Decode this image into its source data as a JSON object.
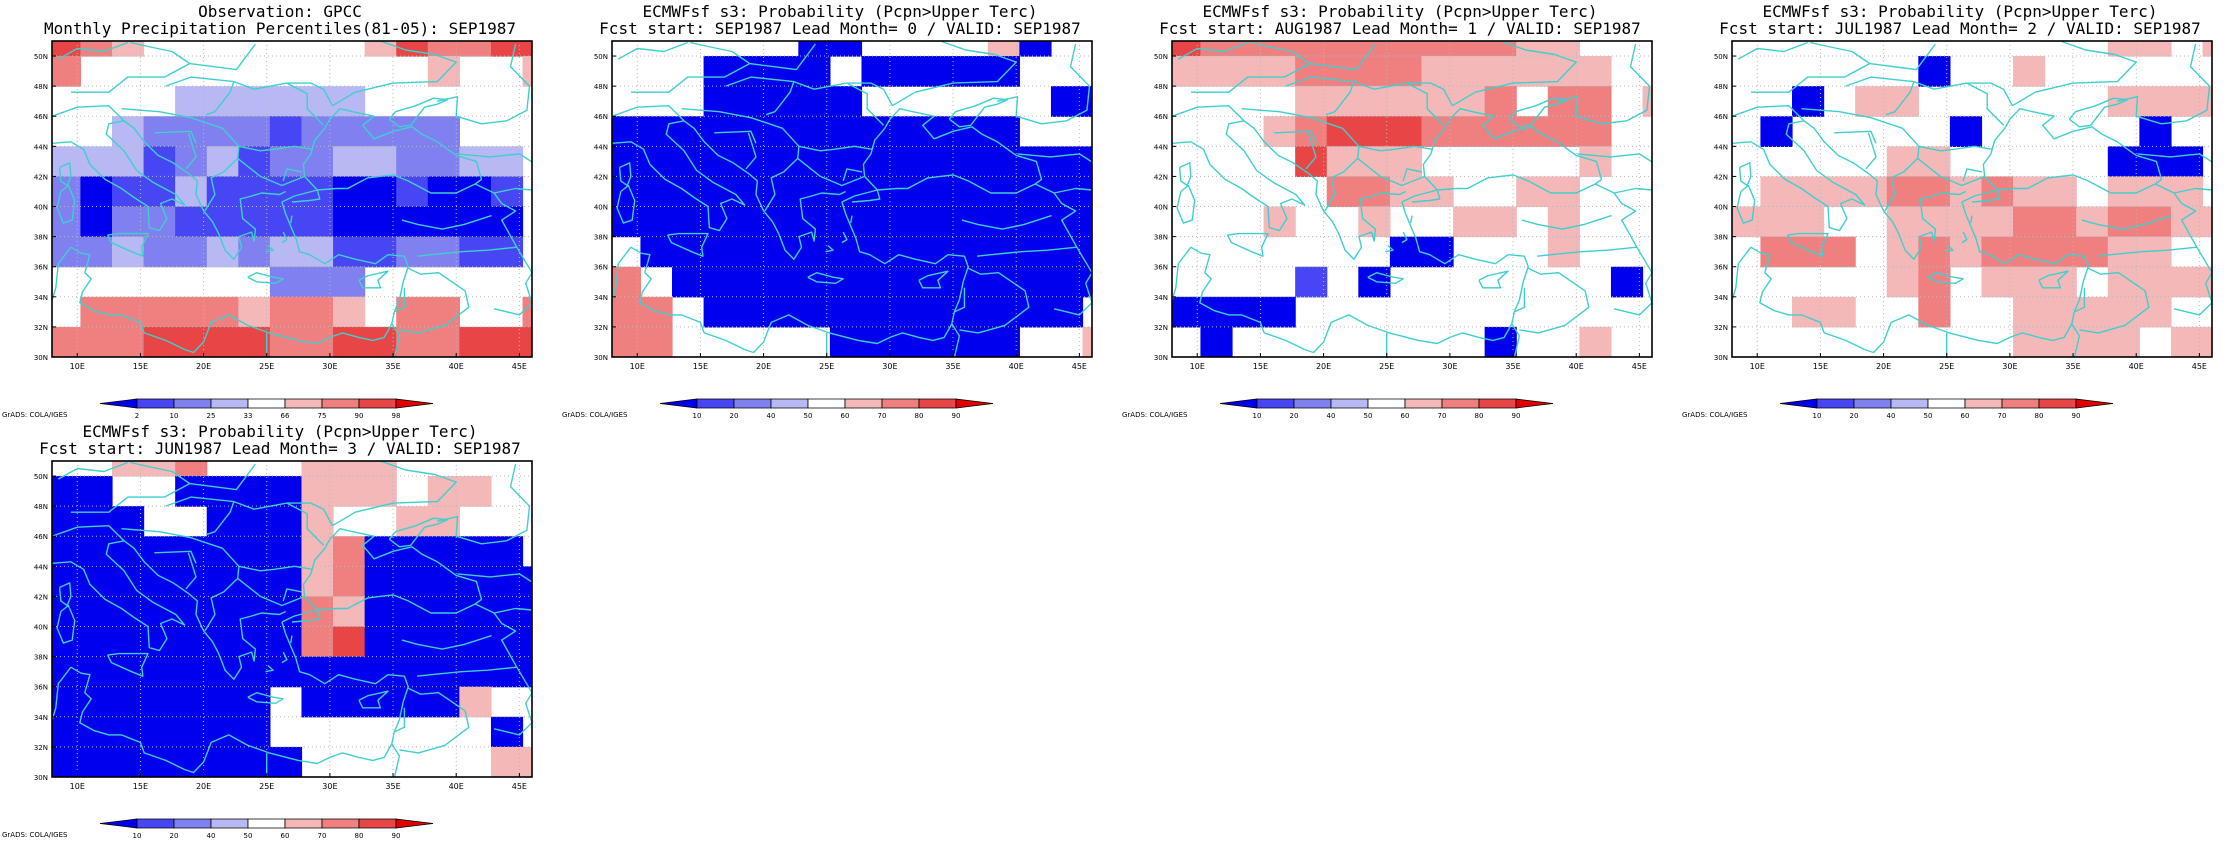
{
  "colors": {
    "land": "#ffffff",
    "coast": "#3fcfcf",
    "grid": "#b8b8b8",
    "scale": [
      "#0000ee",
      "#4646f4",
      "#8080f0",
      "#b8b8f4",
      "#ffffff",
      "#f4b8b8",
      "#f08080",
      "#e84646",
      "#e00000"
    ]
  },
  "axes": {
    "lon_ticks": [
      "10E",
      "15E",
      "20E",
      "25E",
      "30E",
      "35E",
      "40E",
      "45E"
    ],
    "lat_ticks": [
      "30N",
      "32N",
      "34N",
      "36N",
      "38N",
      "40N",
      "42N",
      "44N",
      "46N",
      "48N",
      "50N"
    ]
  },
  "grads_label": "GrADS: COLA/IGES",
  "panels": [
    {
      "title_line1": "Observation: GPCC",
      "title_line2": "Monthly Precipitation Percentiles(81-05): SEP1987",
      "legend_ticks": [
        "2",
        "10",
        "25",
        "33",
        "66",
        "75",
        "90",
        "98"
      ],
      "grid": [
        "76544444445766778",
        "64444444444454458",
        "44443333334444444",
        "44322221222224444",
        "33312312233223344",
        "20113111100100144",
        "20221111100000044",
        "22322323311221144",
        "44444442224444444",
        "46666656654664465",
        "66677776677667778",
        "66677666677666778"
      ]
    },
    {
      "title_line1": "ECMWFsf s3: Probability (Pcpn>Upper Terc)",
      "title_line2": "Fcst start: SEP1987  Lead Month= 0 / VALID: SEP1987",
      "legend_ticks": [
        "10",
        "20",
        "40",
        "50",
        "60",
        "70",
        "80",
        "90"
      ],
      "grid": [
        "44444400444450444",
        "44400004000004444",
        "44400000444444000",
        "00000000000004444",
        "00000000000000000",
        "00000000000000000",
        "00000000000000000",
        "40000000000000000",
        "64000000000000004",
        "66400000000000044",
        "66444440000004456",
        "44444000000004578"
      ]
    },
    {
      "title_line1": "ECMWFsf s3: Probability (Pcpn>Upper Terc)",
      "title_line2": "Fcst start: AUG1987  Lead Month= 1 / VALID: SEP1987",
      "legend_ticks": [
        "10",
        "20",
        "40",
        "50",
        "60",
        "70",
        "80",
        "90"
      ],
      "grid": [
        "76666666666554444",
        "55556666555555444",
        "44445555556466454",
        "44456777666666444",
        "44447555444445444",
        "44444665544554445",
        "44454454455454446",
        "44444440044454444",
        "44441404444444044",
        "00004444444444444",
        "40444444440445444",
        "44444444444444444"
      ]
    },
    {
      "title_line1": "ECMWFsf s3: Probability (Pcpn>Upper Terc)",
      "title_line2": "Fcst start: JUL1987  Lead Month= 2 / VALID: SEP1987",
      "legend_ticks": [
        "10",
        "20",
        "40",
        "50",
        "60",
        "70",
        "80",
        "90"
      ],
      "grid": [
        "44444444444455456",
        "44444404454444444",
        "44045544444455555",
        "40444440444440444",
        "44444554444400044",
        "45555665655455544",
        "55544555566566556",
        "46664565666655444",
        "44444564555455555",
        "44554464455555444",
        "44444444455554554",
        "40440456677444454"
      ]
    },
    {
      "title_line1": "ECMWFsf s3: Probability (Pcpn>Upper Terc)",
      "title_line2": "Fcst start: JUN1987  Lead Month= 3 / VALID: SEP1987",
      "legend_ticks": [
        "10",
        "20",
        "40",
        "50",
        "60",
        "70",
        "80",
        "90"
      ],
      "grid": [
        "44556444555444444",
        "00440000555455444",
        "00044000544554444",
        "00000000560000044",
        "00000000560000000",
        "00000000650000000",
        "00000000670000000",
        "00000000000000000",
        "00000004000005444",
        "00000004444444044",
        "00000000444444555",
        "00000000444444555"
      ]
    }
  ]
}
